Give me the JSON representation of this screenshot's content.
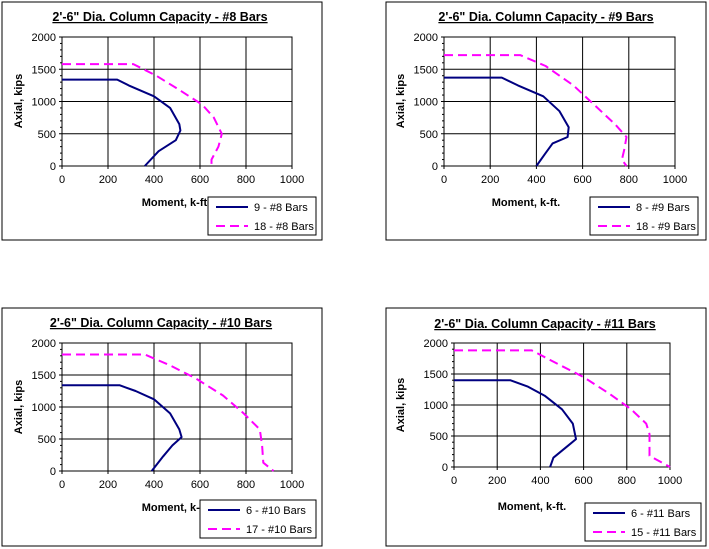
{
  "chart_data": [
    {
      "type": "line",
      "title": "2'-6\" Dia. Column Capacity - #8 Bars",
      "xlabel": "Moment, k-ft.",
      "ylabel": "Axial, kips",
      "xlim": [
        0,
        1000
      ],
      "ylim": [
        0,
        2000
      ],
      "xticks": [
        0,
        200,
        400,
        600,
        800,
        1000
      ],
      "yticks": [
        0,
        500,
        1000,
        1500,
        2000
      ],
      "grid": true,
      "legend_position": "bottom-right",
      "series": [
        {
          "name": "9 - #8 Bars",
          "color": "#000080",
          "style": "solid",
          "points": [
            [
              0,
              1340
            ],
            [
              240,
              1340
            ],
            [
              290,
              1250
            ],
            [
              400,
              1080
            ],
            [
              470,
              900
            ],
            [
              510,
              650
            ],
            [
              515,
              550
            ],
            [
              495,
              400
            ],
            [
              420,
              230
            ],
            [
              360,
              0
            ]
          ]
        },
        {
          "name": "18 - #8 Bars",
          "color": "#FF00FF",
          "style": "dashed",
          "points": [
            [
              0,
              1580
            ],
            [
              310,
              1580
            ],
            [
              410,
              1400
            ],
            [
              510,
              1180
            ],
            [
              610,
              950
            ],
            [
              660,
              750
            ],
            [
              695,
              500
            ],
            [
              680,
              300
            ],
            [
              650,
              100
            ],
            [
              650,
              0
            ]
          ]
        }
      ]
    },
    {
      "type": "line",
      "title": "2'-6\" Dia. Column Capacity - #9 Bars",
      "xlabel": "Moment, k-ft.",
      "ylabel": "Axial, kips",
      "xlim": [
        0,
        1000
      ],
      "ylim": [
        0,
        2000
      ],
      "xticks": [
        0,
        200,
        400,
        600,
        800,
        1000
      ],
      "yticks": [
        0,
        500,
        1000,
        1500,
        2000
      ],
      "grid": true,
      "legend_position": "bottom-right",
      "series": [
        {
          "name": "8 - #9 Bars",
          "color": "#000080",
          "style": "solid",
          "points": [
            [
              0,
              1370
            ],
            [
              250,
              1370
            ],
            [
              320,
              1250
            ],
            [
              430,
              1080
            ],
            [
              500,
              850
            ],
            [
              540,
              600
            ],
            [
              535,
              450
            ],
            [
              470,
              350
            ],
            [
              440,
              200
            ],
            [
              400,
              0
            ]
          ]
        },
        {
          "name": "18 - #9 Bars",
          "color": "#FF00FF",
          "style": "dashed",
          "points": [
            [
              0,
              1720
            ],
            [
              330,
              1720
            ],
            [
              440,
              1550
            ],
            [
              560,
              1250
            ],
            [
              650,
              950
            ],
            [
              740,
              650
            ],
            [
              790,
              450
            ],
            [
              780,
              250
            ],
            [
              770,
              100
            ],
            [
              790,
              0
            ]
          ]
        }
      ]
    },
    {
      "type": "line",
      "title": "2'-6\" Dia. Column Capacity - #10 Bars",
      "xlabel": "Moment, k-ft.",
      "ylabel": "Axial, kips",
      "xlim": [
        0,
        1000
      ],
      "ylim": [
        0,
        2000
      ],
      "xticks": [
        0,
        200,
        400,
        600,
        800,
        1000
      ],
      "yticks": [
        0,
        500,
        1000,
        1500,
        2000
      ],
      "grid": true,
      "legend_position": "bottom-right",
      "series": [
        {
          "name": "6 - #10 Bars",
          "color": "#000080",
          "style": "solid",
          "points": [
            [
              0,
              1340
            ],
            [
              250,
              1340
            ],
            [
              320,
              1250
            ],
            [
              400,
              1120
            ],
            [
              470,
              900
            ],
            [
              510,
              650
            ],
            [
              520,
              530
            ],
            [
              480,
              400
            ],
            [
              440,
              230
            ],
            [
              390,
              0
            ]
          ]
        },
        {
          "name": "17 - #10 Bars",
          "color": "#FF00FF",
          "style": "dashed",
          "points": [
            [
              0,
              1820
            ],
            [
              360,
              1820
            ],
            [
              470,
              1650
            ],
            [
              580,
              1450
            ],
            [
              700,
              1180
            ],
            [
              790,
              900
            ],
            [
              860,
              650
            ],
            [
              870,
              400
            ],
            [
              875,
              130
            ],
            [
              920,
              0
            ]
          ]
        }
      ]
    },
    {
      "type": "line",
      "title": "2'-6\" Dia. Column Capacity - #11 Bars",
      "xlabel": "Moment, k-ft.",
      "ylabel": "Axial, kips",
      "xlim": [
        0,
        1000
      ],
      "ylim": [
        0,
        2000
      ],
      "xticks": [
        0,
        200,
        400,
        600,
        800,
        1000
      ],
      "yticks": [
        0,
        500,
        1000,
        1500,
        2000
      ],
      "grid": true,
      "legend_position": "bottom-right",
      "series": [
        {
          "name": "6 - #11 Bars",
          "color": "#000080",
          "style": "solid",
          "points": [
            [
              0,
              1400
            ],
            [
              260,
              1400
            ],
            [
              340,
              1300
            ],
            [
              420,
              1150
            ],
            [
              500,
              930
            ],
            [
              550,
              700
            ],
            [
              565,
              450
            ],
            [
              530,
              350
            ],
            [
              460,
              150
            ],
            [
              445,
              0
            ]
          ]
        },
        {
          "name": "15 - #11 Bars",
          "color": "#FF00FF",
          "style": "dashed",
          "points": [
            [
              0,
              1880
            ],
            [
              360,
              1880
            ],
            [
              470,
              1680
            ],
            [
              600,
              1450
            ],
            [
              720,
              1180
            ],
            [
              820,
              930
            ],
            [
              890,
              700
            ],
            [
              905,
              530
            ],
            [
              905,
              180
            ],
            [
              1000,
              0
            ]
          ]
        }
      ]
    }
  ]
}
